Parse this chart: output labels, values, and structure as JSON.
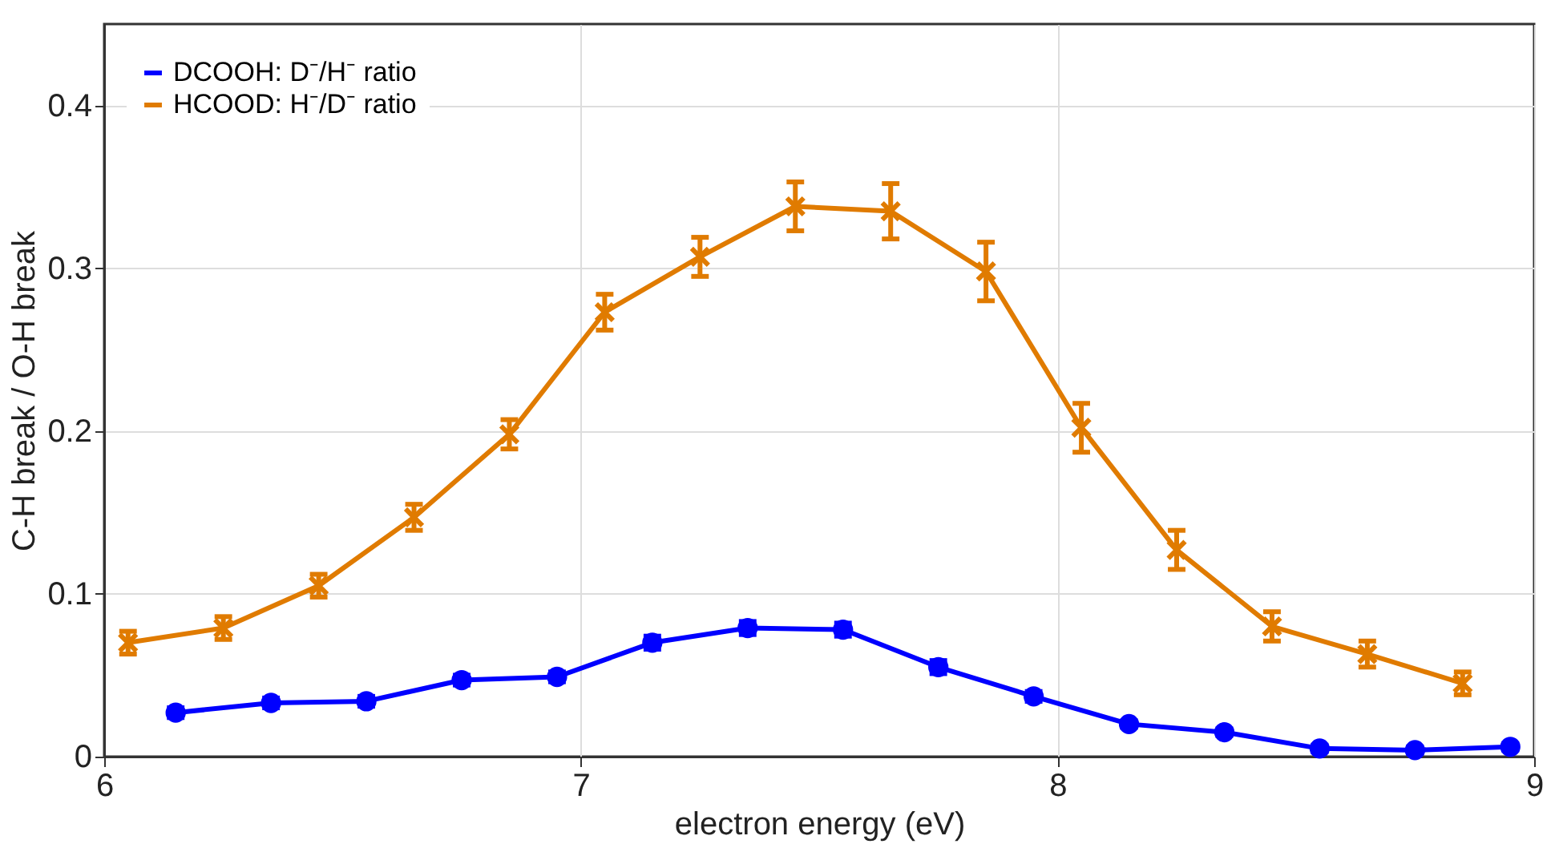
{
  "chart_data": {
    "type": "line",
    "xlabel": "electron energy (eV)",
    "ylabel": "C-H break / O-H break",
    "xlim": [
      6,
      9
    ],
    "xticks": [
      6,
      7,
      8,
      9
    ],
    "ylim": [
      0,
      0.45
    ],
    "yticks": [
      0,
      0.1,
      0.2,
      0.3,
      0.4
    ],
    "grid": true,
    "legend": "top left",
    "line_style": "solid",
    "series": [
      {
        "name": "DCOOH: D⁻/H⁻ ratio",
        "color": "#0000ff",
        "marker": "circle",
        "x": [
          6.15,
          6.35,
          6.55,
          6.75,
          6.95,
          7.15,
          7.35,
          7.55,
          7.75,
          7.95,
          8.15,
          8.35,
          8.55,
          8.75,
          8.95
        ],
        "values": [
          0.027,
          0.033,
          0.034,
          0.047,
          0.049,
          0.07,
          0.079,
          0.078,
          0.055,
          0.037,
          0.02,
          0.015,
          0.005,
          0.004,
          0.006
        ],
        "errors": [
          0.003,
          0.003,
          0.003,
          0.003,
          0.003,
          0.004,
          0.004,
          0.004,
          0.004,
          0.003,
          0.002,
          0.002,
          0.002,
          0.002,
          0.002
        ]
      },
      {
        "name": "HCOOD: H⁻/D⁻ ratio",
        "color": "#e07b00",
        "marker": "cross",
        "x": [
          6.05,
          6.25,
          6.45,
          6.65,
          6.85,
          7.05,
          7.25,
          7.45,
          7.65,
          7.85,
          8.05,
          8.25,
          8.45,
          8.65,
          8.85
        ],
        "values": [
          0.07,
          0.079,
          0.105,
          0.147,
          0.198,
          0.273,
          0.307,
          0.338,
          0.335,
          0.298,
          0.202,
          0.127,
          0.08,
          0.063,
          0.045
        ],
        "errors": [
          0.007,
          0.007,
          0.007,
          0.008,
          0.009,
          0.011,
          0.012,
          0.015,
          0.017,
          0.018,
          0.015,
          0.012,
          0.009,
          0.008,
          0.007
        ]
      }
    ]
  }
}
